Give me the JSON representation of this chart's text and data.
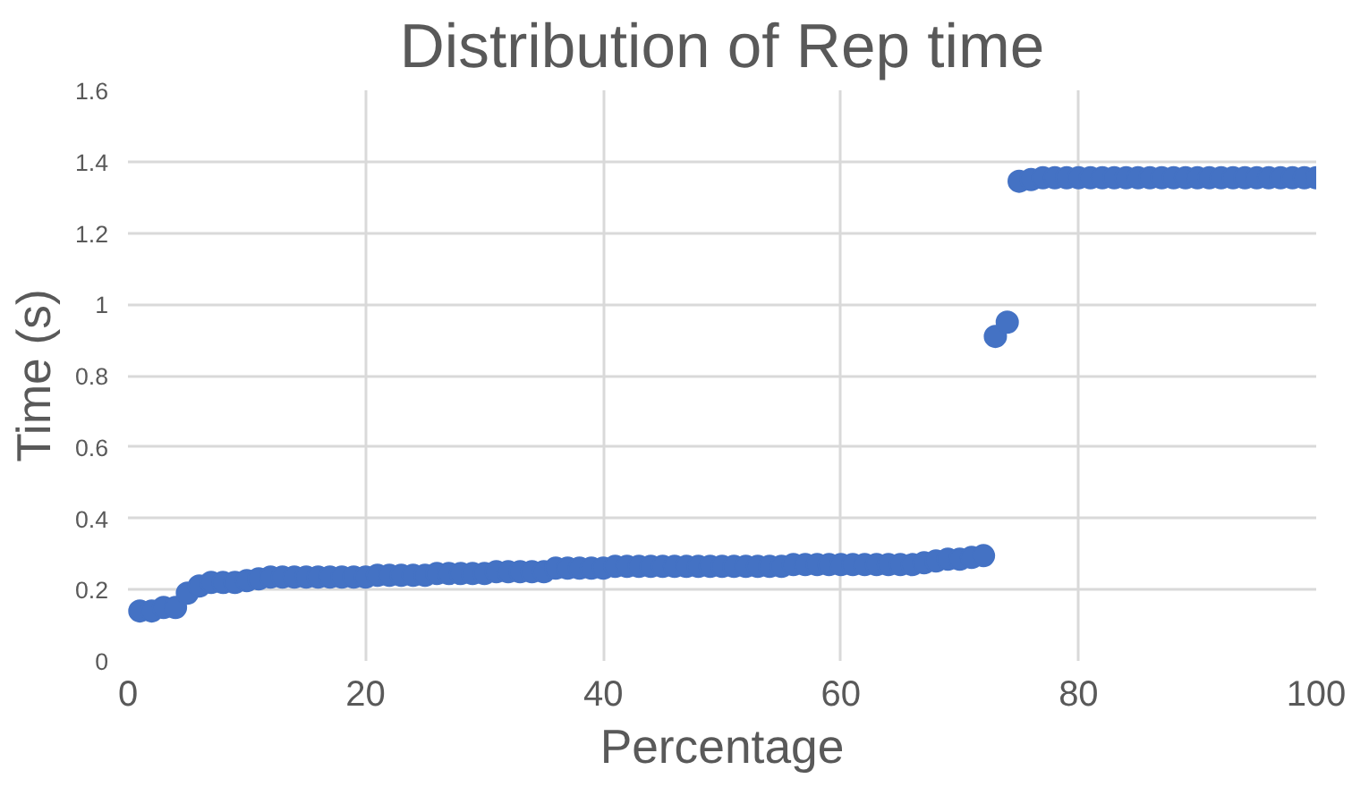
{
  "chart_data": {
    "type": "scatter",
    "title": "Distribution of Rep time",
    "xlabel": "Percentage",
    "ylabel": "Time (s)",
    "x": [
      1,
      2,
      3,
      4,
      5,
      6,
      7,
      8,
      9,
      10,
      11,
      12,
      13,
      14,
      15,
      16,
      17,
      18,
      19,
      20,
      21,
      22,
      23,
      24,
      25,
      26,
      27,
      28,
      29,
      30,
      31,
      32,
      33,
      34,
      35,
      36,
      37,
      38,
      39,
      40,
      41,
      42,
      43,
      44,
      45,
      46,
      47,
      48,
      49,
      50,
      51,
      52,
      53,
      54,
      55,
      56,
      57,
      58,
      59,
      60,
      61,
      62,
      63,
      64,
      65,
      66,
      67,
      68,
      69,
      70,
      71,
      72,
      73,
      74,
      75,
      76,
      77,
      78,
      79,
      80,
      81,
      82,
      83,
      84,
      85,
      86,
      87,
      88,
      89,
      90,
      91,
      92,
      93,
      94,
      95,
      96,
      97,
      98,
      99,
      100
    ],
    "series": [
      {
        "color": "#4472c4",
        "values": [
          0.14,
          0.14,
          0.15,
          0.15,
          0.19,
          0.21,
          0.22,
          0.22,
          0.22,
          0.225,
          0.23,
          0.235,
          0.235,
          0.235,
          0.235,
          0.235,
          0.235,
          0.235,
          0.235,
          0.235,
          0.24,
          0.24,
          0.24,
          0.24,
          0.24,
          0.245,
          0.245,
          0.245,
          0.245,
          0.245,
          0.25,
          0.25,
          0.25,
          0.25,
          0.25,
          0.26,
          0.26,
          0.26,
          0.26,
          0.26,
          0.265,
          0.265,
          0.265,
          0.265,
          0.265,
          0.265,
          0.265,
          0.265,
          0.265,
          0.265,
          0.265,
          0.265,
          0.265,
          0.265,
          0.265,
          0.27,
          0.27,
          0.27,
          0.27,
          0.27,
          0.27,
          0.27,
          0.27,
          0.27,
          0.27,
          0.27,
          0.275,
          0.28,
          0.285,
          0.285,
          0.29,
          0.295,
          0.91,
          0.95,
          1.345,
          1.35,
          1.355,
          1.355,
          1.355,
          1.355,
          1.355,
          1.355,
          1.355,
          1.355,
          1.355,
          1.355,
          1.355,
          1.355,
          1.355,
          1.355,
          1.355,
          1.355,
          1.355,
          1.355,
          1.355,
          1.355,
          1.355,
          1.355,
          1.355,
          1.355
        ]
      }
    ],
    "xlim": [
      0,
      100
    ],
    "xticks": [
      0,
      20,
      40,
      60,
      80,
      100
    ],
    "ylim": [
      0,
      1.6
    ],
    "yticks": [
      0,
      0.2,
      0.4,
      0.6,
      0.8,
      1,
      1.2,
      1.4,
      1.6
    ],
    "grid": true,
    "marker": "circle"
  }
}
